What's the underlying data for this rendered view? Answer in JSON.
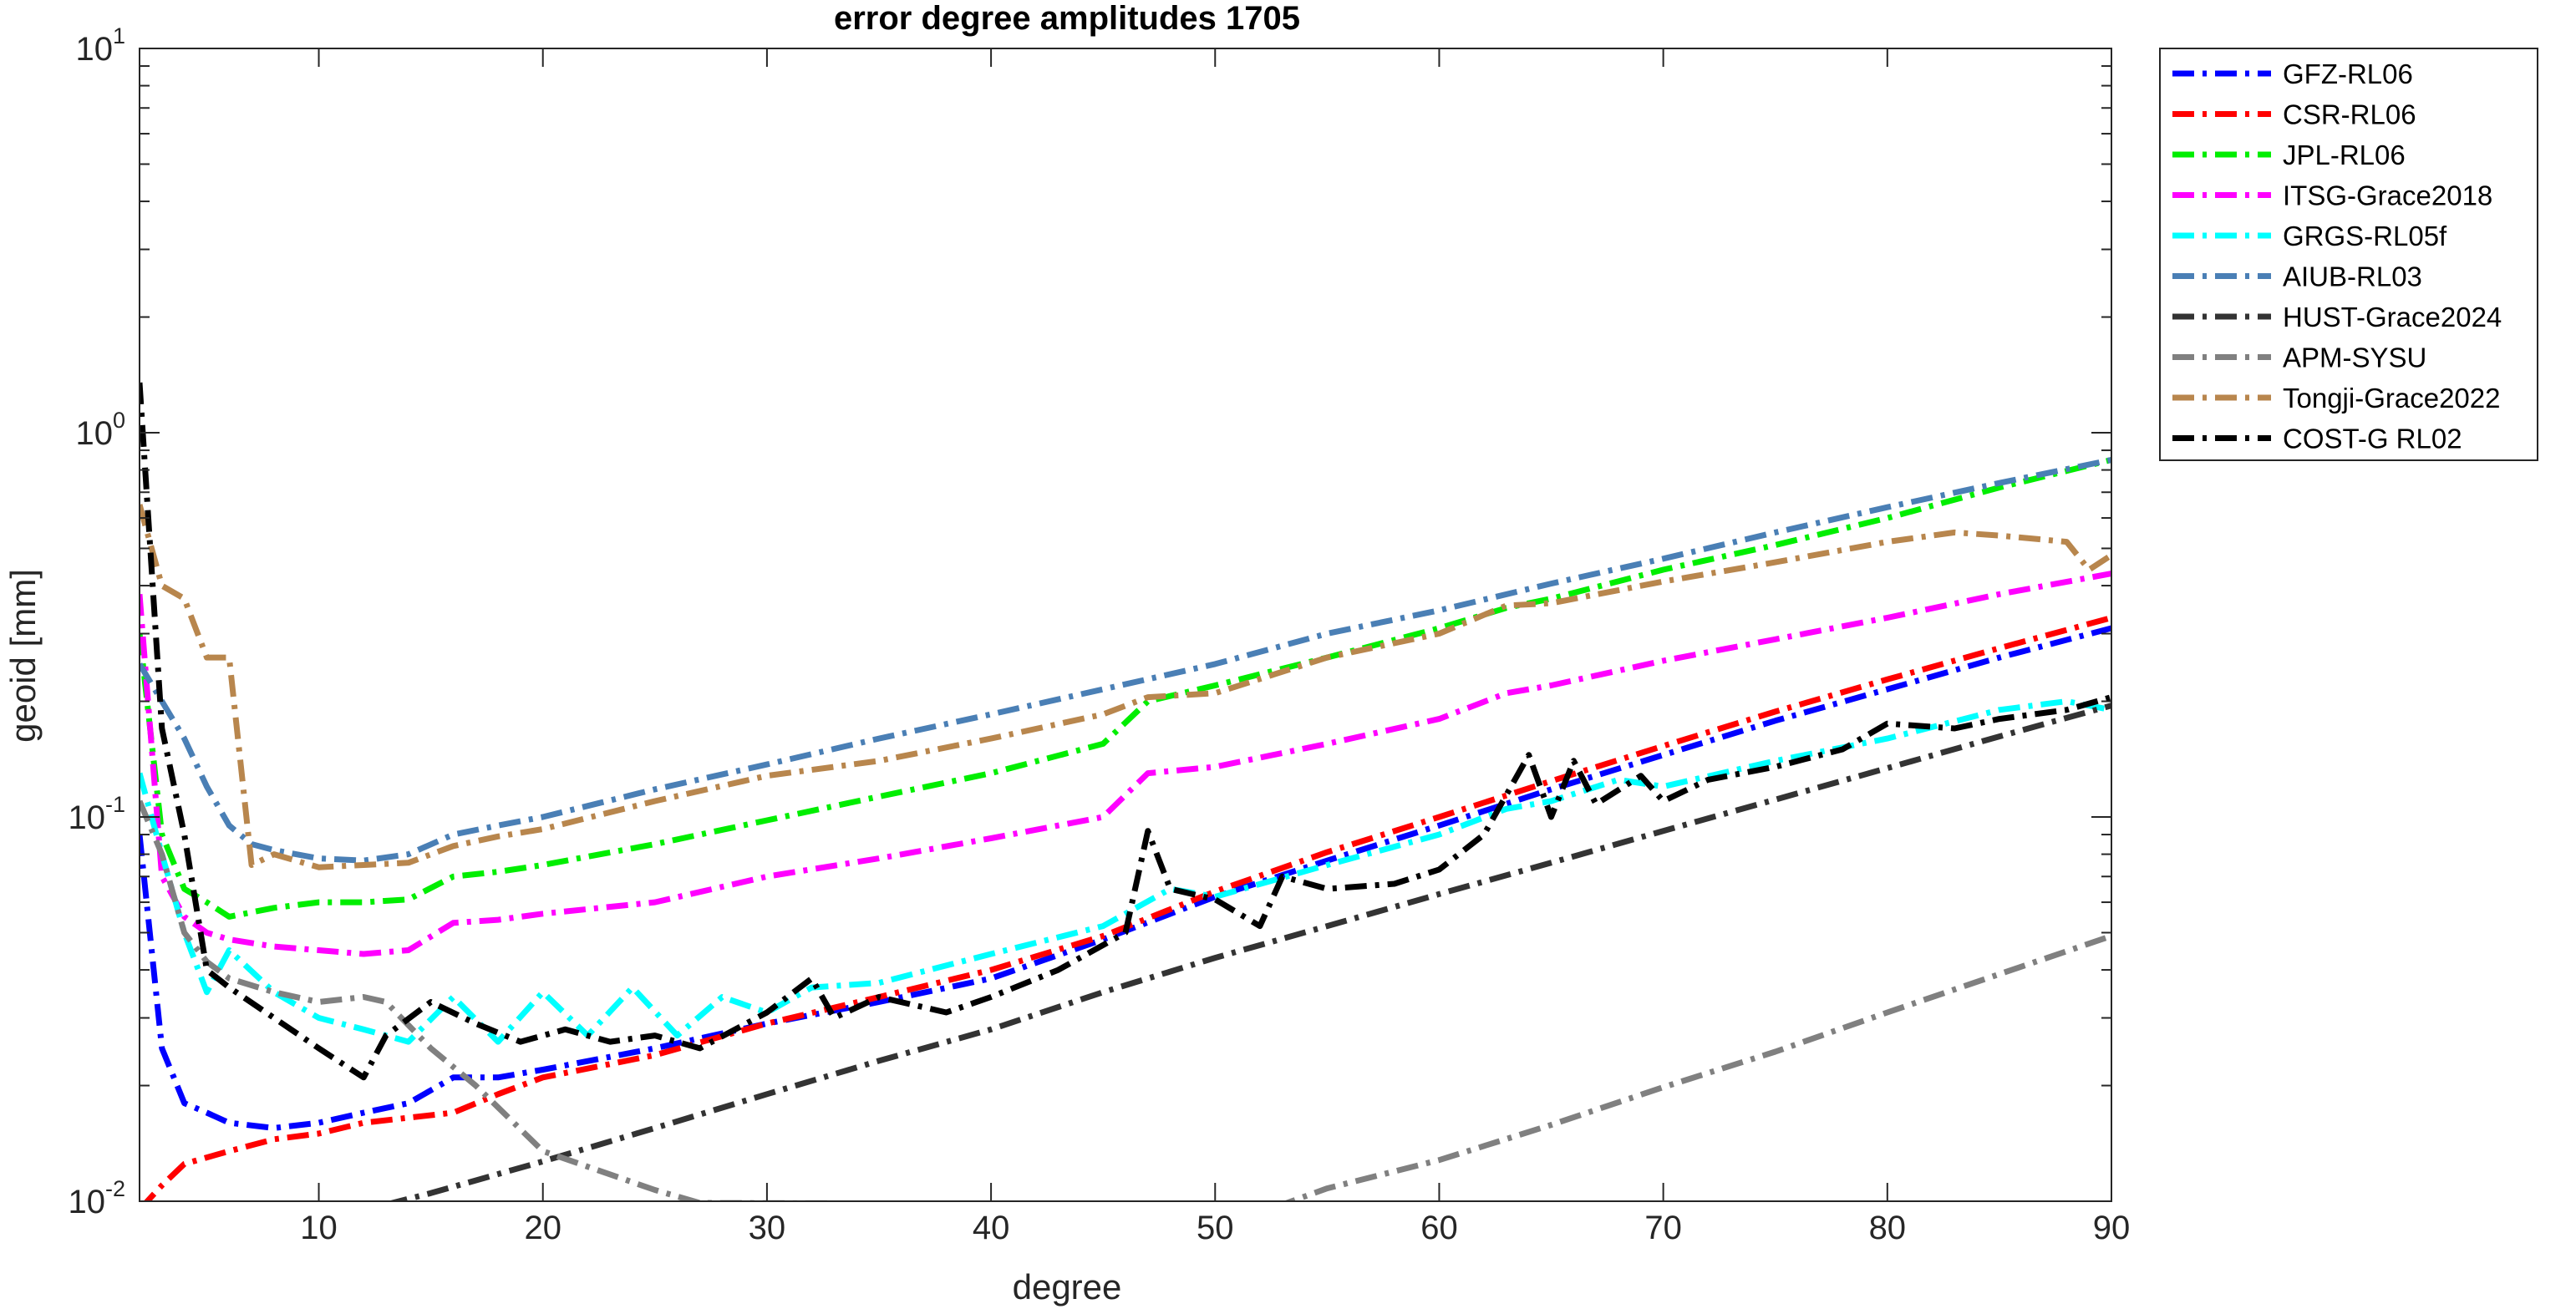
{
  "chart_data": {
    "type": "line",
    "title": "error degree amplitudes 1705",
    "xlabel": "degree",
    "ylabel": "geoid [mm]",
    "xlim": [
      2,
      90
    ],
    "ylim": [
      0.01,
      10
    ],
    "yscale": "log",
    "grid": false,
    "legend_position": "outside-right-top",
    "xticks": [
      10,
      20,
      30,
      40,
      50,
      60,
      70,
      80,
      90
    ],
    "xtick_labels": [
      "10",
      "20",
      "30",
      "40",
      "50",
      "60",
      "70",
      "80",
      "90"
    ],
    "yticks": [
      {
        "value": 0.01,
        "base": "10",
        "exp": "-2"
      },
      {
        "value": 0.1,
        "base": "10",
        "exp": "-1"
      },
      {
        "value": 1,
        "base": "10",
        "exp": "0"
      },
      {
        "value": 10,
        "base": "10",
        "exp": "1"
      }
    ],
    "series": [
      {
        "name": "GFZ-RL06",
        "color": "#0000ff",
        "dashed": true,
        "points": [
          [
            2,
            0.09
          ],
          [
            3,
            0.025
          ],
          [
            4,
            0.018
          ],
          [
            5,
            0.017
          ],
          [
            6,
            0.016
          ],
          [
            8,
            0.0155
          ],
          [
            10,
            0.016
          ],
          [
            12,
            0.017
          ],
          [
            14,
            0.018
          ],
          [
            16,
            0.021
          ],
          [
            18,
            0.021
          ],
          [
            20,
            0.022
          ],
          [
            25,
            0.025
          ],
          [
            30,
            0.029
          ],
          [
            35,
            0.033
          ],
          [
            40,
            0.038
          ],
          [
            45,
            0.048
          ],
          [
            50,
            0.062
          ],
          [
            55,
            0.077
          ],
          [
            60,
            0.095
          ],
          [
            65,
            0.118
          ],
          [
            70,
            0.145
          ],
          [
            75,
            0.178
          ],
          [
            80,
            0.215
          ],
          [
            85,
            0.26
          ],
          [
            90,
            0.31
          ]
        ]
      },
      {
        "name": "CSR-RL06",
        "color": "#ff0000",
        "dashed": true,
        "points": [
          [
            2,
            0.0095
          ],
          [
            3,
            0.011
          ],
          [
            4,
            0.0125
          ],
          [
            5,
            0.013
          ],
          [
            6,
            0.0135
          ],
          [
            8,
            0.0145
          ],
          [
            10,
            0.015
          ],
          [
            12,
            0.016
          ],
          [
            14,
            0.0165
          ],
          [
            16,
            0.017
          ],
          [
            18,
            0.019
          ],
          [
            20,
            0.021
          ],
          [
            25,
            0.024
          ],
          [
            30,
            0.029
          ],
          [
            35,
            0.034
          ],
          [
            40,
            0.04
          ],
          [
            45,
            0.049
          ],
          [
            50,
            0.064
          ],
          [
            55,
            0.081
          ],
          [
            60,
            0.1
          ],
          [
            65,
            0.124
          ],
          [
            70,
            0.153
          ],
          [
            75,
            0.188
          ],
          [
            80,
            0.228
          ],
          [
            85,
            0.275
          ],
          [
            90,
            0.33
          ]
        ]
      },
      {
        "name": "JPL-RL06",
        "color": "#00ee00",
        "dashed": true,
        "points": [
          [
            2,
            0.3
          ],
          [
            3,
            0.09
          ],
          [
            4,
            0.065
          ],
          [
            5,
            0.06
          ],
          [
            6,
            0.055
          ],
          [
            8,
            0.058
          ],
          [
            10,
            0.06
          ],
          [
            12,
            0.06
          ],
          [
            14,
            0.061
          ],
          [
            16,
            0.07
          ],
          [
            18,
            0.072
          ],
          [
            20,
            0.075
          ],
          [
            25,
            0.085
          ],
          [
            30,
            0.098
          ],
          [
            35,
            0.113
          ],
          [
            40,
            0.13
          ],
          [
            45,
            0.155
          ],
          [
            47,
            0.2
          ],
          [
            50,
            0.22
          ],
          [
            55,
            0.26
          ],
          [
            60,
            0.31
          ],
          [
            63,
            0.35
          ],
          [
            65,
            0.37
          ],
          [
            70,
            0.44
          ],
          [
            75,
            0.51
          ],
          [
            80,
            0.6
          ],
          [
            85,
            0.72
          ],
          [
            90,
            0.85
          ]
        ]
      },
      {
        "name": "ITSG-Grace2018",
        "color": "#ff00ff",
        "dashed": true,
        "points": [
          [
            2,
            0.38
          ],
          [
            3,
            0.07
          ],
          [
            4,
            0.055
          ],
          [
            5,
            0.05
          ],
          [
            6,
            0.048
          ],
          [
            8,
            0.046
          ],
          [
            10,
            0.045
          ],
          [
            12,
            0.044
          ],
          [
            14,
            0.045
          ],
          [
            16,
            0.053
          ],
          [
            18,
            0.054
          ],
          [
            20,
            0.056
          ],
          [
            25,
            0.06
          ],
          [
            30,
            0.07
          ],
          [
            35,
            0.078
          ],
          [
            40,
            0.088
          ],
          [
            45,
            0.1
          ],
          [
            47,
            0.13
          ],
          [
            50,
            0.135
          ],
          [
            55,
            0.155
          ],
          [
            60,
            0.18
          ],
          [
            63,
            0.21
          ],
          [
            65,
            0.22
          ],
          [
            70,
            0.255
          ],
          [
            75,
            0.29
          ],
          [
            80,
            0.33
          ],
          [
            85,
            0.38
          ],
          [
            90,
            0.43
          ]
        ]
      },
      {
        "name": "GRGS-RL05f",
        "color": "#00ffff",
        "dashed": true,
        "points": [
          [
            2,
            0.13
          ],
          [
            3,
            0.08
          ],
          [
            4,
            0.05
          ],
          [
            5,
            0.035
          ],
          [
            6,
            0.045
          ],
          [
            8,
            0.035
          ],
          [
            10,
            0.03
          ],
          [
            12,
            0.028
          ],
          [
            14,
            0.026
          ],
          [
            16,
            0.034
          ],
          [
            18,
            0.026
          ],
          [
            20,
            0.035
          ],
          [
            22,
            0.027
          ],
          [
            24,
            0.036
          ],
          [
            26,
            0.027
          ],
          [
            28,
            0.034
          ],
          [
            30,
            0.031
          ],
          [
            32,
            0.036
          ],
          [
            35,
            0.037
          ],
          [
            40,
            0.044
          ],
          [
            45,
            0.052
          ],
          [
            48,
            0.065
          ],
          [
            50,
            0.062
          ],
          [
            55,
            0.075
          ],
          [
            60,
            0.09
          ],
          [
            63,
            0.105
          ],
          [
            65,
            0.11
          ],
          [
            68,
            0.125
          ],
          [
            70,
            0.12
          ],
          [
            75,
            0.14
          ],
          [
            80,
            0.16
          ],
          [
            85,
            0.19
          ],
          [
            88,
            0.2
          ],
          [
            90,
            0.19
          ]
        ]
      },
      {
        "name": "AIUB-RL03",
        "color": "#4a7fb5",
        "dashed": true,
        "points": [
          [
            2,
            0.25
          ],
          [
            3,
            0.2
          ],
          [
            4,
            0.16
          ],
          [
            5,
            0.12
          ],
          [
            6,
            0.095
          ],
          [
            7,
            0.085
          ],
          [
            8,
            0.082
          ],
          [
            10,
            0.078
          ],
          [
            12,
            0.077
          ],
          [
            14,
            0.08
          ],
          [
            16,
            0.09
          ],
          [
            18,
            0.095
          ],
          [
            20,
            0.1
          ],
          [
            25,
            0.118
          ],
          [
            30,
            0.137
          ],
          [
            35,
            0.16
          ],
          [
            40,
            0.185
          ],
          [
            45,
            0.215
          ],
          [
            50,
            0.25
          ],
          [
            55,
            0.3
          ],
          [
            60,
            0.345
          ],
          [
            65,
            0.405
          ],
          [
            70,
            0.47
          ],
          [
            75,
            0.55
          ],
          [
            80,
            0.64
          ],
          [
            85,
            0.74
          ],
          [
            90,
            0.85
          ]
        ]
      },
      {
        "name": "HUST-Grace2024",
        "color": "#333333",
        "dashed": true,
        "points": [
          [
            13,
            0.0098
          ],
          [
            15,
            0.0105
          ],
          [
            20,
            0.0127
          ],
          [
            25,
            0.0155
          ],
          [
            30,
            0.019
          ],
          [
            35,
            0.0232
          ],
          [
            40,
            0.028
          ],
          [
            45,
            0.035
          ],
          [
            50,
            0.043
          ],
          [
            55,
            0.052
          ],
          [
            60,
            0.063
          ],
          [
            65,
            0.076
          ],
          [
            70,
            0.092
          ],
          [
            75,
            0.111
          ],
          [
            80,
            0.134
          ],
          [
            85,
            0.162
          ],
          [
            90,
            0.195
          ]
        ]
      },
      {
        "name": "APM-SYSU",
        "color": "#808080",
        "dashed": true,
        "points": [
          [
            2,
            0.11
          ],
          [
            3,
            0.08
          ],
          [
            4,
            0.05
          ],
          [
            5,
            0.042
          ],
          [
            6,
            0.038
          ],
          [
            8,
            0.035
          ],
          [
            10,
            0.033
          ],
          [
            12,
            0.034
          ],
          [
            13,
            0.033
          ],
          [
            15,
            0.025
          ],
          [
            17,
            0.02
          ],
          [
            20,
            0.0135
          ],
          [
            25,
            0.0107
          ],
          [
            27,
            0.0099
          ],
          [
            53,
            0.0098
          ],
          [
            55,
            0.0108
          ],
          [
            60,
            0.0128
          ],
          [
            65,
            0.0158
          ],
          [
            70,
            0.0198
          ],
          [
            75,
            0.0245
          ],
          [
            80,
            0.031
          ],
          [
            85,
            0.039
          ],
          [
            90,
            0.049
          ]
        ]
      },
      {
        "name": "Tongji-Grace2022",
        "color": "#b8864d",
        "dashed": true,
        "points": [
          [
            2,
            0.65
          ],
          [
            3,
            0.4
          ],
          [
            4,
            0.37
          ],
          [
            5,
            0.26
          ],
          [
            6,
            0.26
          ],
          [
            7,
            0.075
          ],
          [
            8,
            0.08
          ],
          [
            10,
            0.074
          ],
          [
            12,
            0.075
          ],
          [
            14,
            0.076
          ],
          [
            16,
            0.084
          ],
          [
            18,
            0.089
          ],
          [
            20,
            0.093
          ],
          [
            25,
            0.11
          ],
          [
            30,
            0.128
          ],
          [
            35,
            0.14
          ],
          [
            40,
            0.16
          ],
          [
            45,
            0.185
          ],
          [
            47,
            0.205
          ],
          [
            50,
            0.21
          ],
          [
            55,
            0.26
          ],
          [
            60,
            0.3
          ],
          [
            63,
            0.355
          ],
          [
            65,
            0.36
          ],
          [
            70,
            0.41
          ],
          [
            75,
            0.46
          ],
          [
            80,
            0.52
          ],
          [
            83,
            0.55
          ],
          [
            85,
            0.54
          ],
          [
            88,
            0.52
          ],
          [
            89,
            0.44
          ],
          [
            90,
            0.48
          ]
        ]
      },
      {
        "name": "COST-G RL02",
        "color": "#000000",
        "dashed": true,
        "points": [
          [
            2,
            1.35
          ],
          [
            3,
            0.17
          ],
          [
            4,
            0.09
          ],
          [
            5,
            0.04
          ],
          [
            6,
            0.036
          ],
          [
            8,
            0.03
          ],
          [
            10,
            0.025
          ],
          [
            12,
            0.021
          ],
          [
            13,
            0.027
          ],
          [
            15,
            0.033
          ],
          [
            17,
            0.029
          ],
          [
            19,
            0.026
          ],
          [
            21,
            0.028
          ],
          [
            23,
            0.026
          ],
          [
            25,
            0.027
          ],
          [
            27,
            0.025
          ],
          [
            30,
            0.031
          ],
          [
            32,
            0.038
          ],
          [
            33,
            0.03
          ],
          [
            35,
            0.034
          ],
          [
            38,
            0.031
          ],
          [
            40,
            0.034
          ],
          [
            43,
            0.04
          ],
          [
            46,
            0.05
          ],
          [
            47,
            0.092
          ],
          [
            48,
            0.065
          ],
          [
            50,
            0.061
          ],
          [
            52,
            0.052
          ],
          [
            53,
            0.07
          ],
          [
            55,
            0.065
          ],
          [
            58,
            0.067
          ],
          [
            60,
            0.073
          ],
          [
            62,
            0.09
          ],
          [
            64,
            0.145
          ],
          [
            65,
            0.1
          ],
          [
            66,
            0.14
          ],
          [
            67,
            0.108
          ],
          [
            69,
            0.128
          ],
          [
            70,
            0.11
          ],
          [
            72,
            0.125
          ],
          [
            75,
            0.135
          ],
          [
            78,
            0.15
          ],
          [
            80,
            0.175
          ],
          [
            83,
            0.17
          ],
          [
            85,
            0.18
          ],
          [
            88,
            0.19
          ],
          [
            90,
            0.205
          ]
        ]
      }
    ]
  }
}
